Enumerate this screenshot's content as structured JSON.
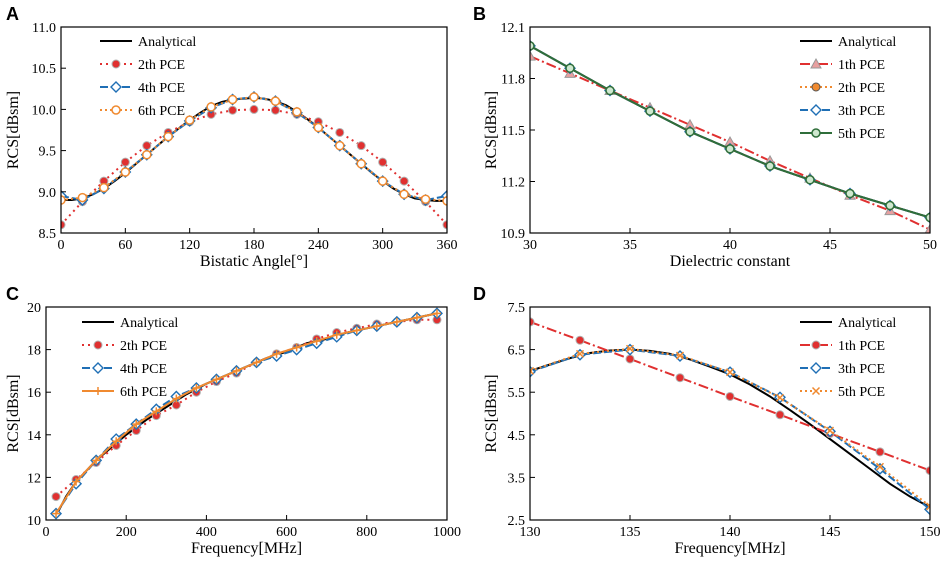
{
  "chart_data": [
    {
      "panel": "A",
      "type": "line",
      "xlabel": "Bistatic Angle[°]",
      "ylabel": "RCS[dBsm]",
      "xlim": [
        0,
        360
      ],
      "ylim": [
        8.5,
        11.0
      ],
      "xticks": [
        0,
        60,
        120,
        180,
        240,
        300,
        360
      ],
      "yticks": [
        8.5,
        9.0,
        9.5,
        10.0,
        10.5,
        11.0
      ],
      "ytick_labels": [
        "8.5",
        "9.0",
        "9.5",
        "10.0",
        "10.5",
        "11.0"
      ],
      "legend_position": "top-left",
      "series": [
        {
          "name": "Analytical",
          "color": "#000000",
          "dash": "",
          "marker": "none",
          "x": [
            0,
            10,
            20,
            30,
            40,
            50,
            60,
            70,
            80,
            90,
            100,
            110,
            120,
            130,
            140,
            150,
            160,
            170,
            180,
            190,
            200,
            210,
            220,
            230,
            240,
            250,
            260,
            270,
            280,
            290,
            300,
            310,
            320,
            330,
            340,
            350,
            360
          ],
          "y": [
            8.9,
            8.9,
            8.92,
            8.97,
            9.04,
            9.13,
            9.23,
            9.34,
            9.45,
            9.56,
            9.67,
            9.77,
            9.87,
            9.96,
            10.04,
            10.09,
            10.12,
            10.13,
            10.14,
            10.13,
            10.1,
            10.05,
            9.97,
            9.88,
            9.78,
            9.67,
            9.56,
            9.45,
            9.34,
            9.23,
            9.13,
            9.04,
            8.97,
            8.92,
            8.9,
            8.89,
            8.89
          ]
        },
        {
          "name": "2th PCE",
          "color": "#e03030",
          "dash": "2,4",
          "marker": "circle",
          "x": [
            0,
            20,
            40,
            60,
            80,
            100,
            120,
            140,
            160,
            180,
            200,
            220,
            240,
            260,
            280,
            300,
            320,
            340,
            360
          ],
          "y": [
            8.6,
            8.88,
            9.13,
            9.36,
            9.56,
            9.72,
            9.85,
            9.94,
            9.99,
            10.0,
            9.99,
            9.94,
            9.85,
            9.72,
            9.56,
            9.36,
            9.13,
            8.88,
            8.6
          ]
        },
        {
          "name": "4th PCE",
          "color": "#1f6fb5",
          "dash": "8,3",
          "marker": "diamond",
          "x": [
            0,
            20,
            40,
            60,
            80,
            100,
            120,
            140,
            160,
            180,
            200,
            220,
            240,
            260,
            280,
            300,
            320,
            340,
            360
          ],
          "y": [
            8.95,
            8.9,
            9.04,
            9.24,
            9.45,
            9.67,
            9.86,
            10.02,
            10.12,
            10.15,
            10.1,
            9.96,
            9.78,
            9.56,
            9.34,
            9.13,
            8.97,
            8.9,
            8.95
          ]
        },
        {
          "name": "6th PCE",
          "color": "#f08a30",
          "dash": "2,3",
          "marker": "circle-open",
          "x": [
            0,
            20,
            40,
            60,
            80,
            100,
            120,
            140,
            160,
            180,
            200,
            220,
            240,
            260,
            280,
            300,
            320,
            340,
            360
          ],
          "y": [
            8.9,
            8.93,
            9.05,
            9.24,
            9.45,
            9.67,
            9.87,
            10.03,
            10.12,
            10.15,
            10.1,
            9.97,
            9.78,
            9.56,
            9.34,
            9.13,
            8.97,
            8.91,
            8.89
          ]
        }
      ]
    },
    {
      "panel": "B",
      "type": "line",
      "xlabel": "Dielectric constant",
      "ylabel": "RCS[dBsm]",
      "xlim": [
        30,
        50
      ],
      "ylim": [
        10.9,
        12.1
      ],
      "xticks": [
        30,
        35,
        40,
        45,
        50
      ],
      "yticks": [
        10.9,
        11.2,
        11.5,
        11.8,
        12.1
      ],
      "ytick_labels": [
        "10.9",
        "11.2",
        "11.5",
        "11.8",
        "12.1"
      ],
      "legend_position": "top-right",
      "series": [
        {
          "name": "Analytical",
          "color": "#000000",
          "dash": "",
          "marker": "none",
          "x": [
            30,
            32,
            34,
            36,
            38,
            40,
            42,
            44,
            46,
            48,
            50
          ],
          "y": [
            11.99,
            11.86,
            11.73,
            11.61,
            11.49,
            11.39,
            11.29,
            11.21,
            11.13,
            11.06,
            10.99
          ]
        },
        {
          "name": "1th PCE",
          "color": "#e03030",
          "dash": "10,3,2,3",
          "marker": "triangle",
          "x": [
            30,
            32,
            34,
            36,
            38,
            40,
            42,
            44,
            46,
            48,
            50
          ],
          "y": [
            11.93,
            11.83,
            11.73,
            11.63,
            11.53,
            11.43,
            11.32,
            11.22,
            11.12,
            11.03,
            10.92
          ]
        },
        {
          "name": "2th PCE",
          "color": "#f08a30",
          "dash": "2,3",
          "marker": "circle-filled-orange",
          "x": [
            30,
            32,
            34,
            36,
            38,
            40,
            42,
            44,
            46,
            48,
            50
          ],
          "y": [
            11.99,
            11.86,
            11.73,
            11.61,
            11.49,
            11.39,
            11.29,
            11.21,
            11.13,
            11.06,
            10.99
          ]
        },
        {
          "name": "3th PCE",
          "color": "#1f6fb5",
          "dash": "8,3",
          "marker": "diamond",
          "x": [
            30,
            32,
            34,
            36,
            38,
            40,
            42,
            44,
            46,
            48,
            50
          ],
          "y": [
            11.99,
            11.86,
            11.73,
            11.61,
            11.49,
            11.39,
            11.29,
            11.21,
            11.13,
            11.06,
            10.99
          ]
        },
        {
          "name": "5th PCE",
          "color": "#2f6e3a",
          "dash": "",
          "marker": "circle-half-green",
          "x": [
            30,
            32,
            34,
            36,
            38,
            40,
            42,
            44,
            46,
            48,
            50
          ],
          "y": [
            11.99,
            11.86,
            11.73,
            11.61,
            11.49,
            11.39,
            11.29,
            11.21,
            11.13,
            11.06,
            10.99
          ]
        }
      ]
    },
    {
      "panel": "C",
      "type": "line",
      "xlabel": "Frequency[MHz]",
      "ylabel": "RCS[dBsm]",
      "xlim": [
        0,
        1000
      ],
      "ylim": [
        10,
        20
      ],
      "xticks": [
        0,
        200,
        400,
        600,
        800,
        1000
      ],
      "yticks": [
        10,
        12,
        14,
        16,
        18,
        20
      ],
      "ytick_labels": [
        "10",
        "12",
        "14",
        "16",
        "18",
        "20"
      ],
      "legend_position": "top-left",
      "series": [
        {
          "name": "Analytical",
          "color": "#000000",
          "dash": "",
          "marker": "none",
          "x": [
            25,
            50,
            75,
            100,
            125,
            150,
            175,
            200,
            250,
            300,
            350,
            400,
            450,
            500,
            550,
            600,
            650,
            700,
            750,
            800,
            850,
            900,
            950,
            975
          ],
          "y": [
            10.2,
            11.1,
            11.8,
            12.3,
            12.8,
            13.2,
            13.6,
            14.0,
            14.7,
            15.3,
            15.9,
            16.4,
            16.8,
            17.2,
            17.6,
            17.9,
            18.3,
            18.5,
            18.8,
            19.0,
            19.2,
            19.4,
            19.6,
            19.7
          ]
        },
        {
          "name": "2th PCE",
          "color": "#e03030",
          "dash": "2,4",
          "marker": "circle",
          "x": [
            25,
            75,
            125,
            175,
            225,
            275,
            325,
            375,
            425,
            475,
            525,
            575,
            625,
            675,
            725,
            775,
            825,
            875,
            925,
            975
          ],
          "y": [
            11.1,
            11.9,
            12.7,
            13.5,
            14.2,
            14.9,
            15.4,
            16.0,
            16.5,
            16.9,
            17.4,
            17.8,
            18.1,
            18.5,
            18.8,
            19.0,
            19.2,
            19.3,
            19.4,
            19.4
          ]
        },
        {
          "name": "4th PCE",
          "color": "#1f6fb5",
          "dash": "8,3",
          "marker": "diamond",
          "x": [
            25,
            75,
            125,
            175,
            225,
            275,
            325,
            375,
            425,
            475,
            525,
            575,
            625,
            675,
            725,
            775,
            825,
            875,
            925,
            975
          ],
          "y": [
            10.3,
            11.7,
            12.8,
            13.8,
            14.5,
            15.2,
            15.8,
            16.2,
            16.6,
            17.0,
            17.4,
            17.7,
            18.0,
            18.3,
            18.6,
            18.9,
            19.1,
            19.3,
            19.5,
            19.7
          ]
        },
        {
          "name": "6th PCE",
          "color": "#f08a30",
          "dash": "",
          "marker": "plus",
          "x": [
            25,
            75,
            125,
            175,
            225,
            275,
            325,
            375,
            425,
            475,
            525,
            575,
            625,
            675,
            725,
            775,
            825,
            875,
            925,
            975
          ],
          "y": [
            10.3,
            11.8,
            12.8,
            13.7,
            14.5,
            15.1,
            15.7,
            16.2,
            16.6,
            17.0,
            17.4,
            17.8,
            18.1,
            18.4,
            18.7,
            18.9,
            19.1,
            19.3,
            19.5,
            19.7
          ]
        }
      ]
    },
    {
      "panel": "D",
      "type": "line",
      "xlabel": "Frequency[MHz]",
      "ylabel": "RCS[dBsm]",
      "xlim": [
        130,
        150
      ],
      "ylim": [
        2.5,
        7.5
      ],
      "xticks": [
        130,
        135,
        140,
        145,
        150
      ],
      "yticks": [
        2.5,
        3.5,
        4.5,
        5.5,
        6.5,
        7.5
      ],
      "ytick_labels": [
        "2.5",
        "3.5",
        "4.5",
        "5.5",
        "6.5",
        "7.5"
      ],
      "legend_position": "top-right",
      "series": [
        {
          "name": "Analytical",
          "color": "#000000",
          "dash": "",
          "marker": "none",
          "x": [
            130,
            131,
            132,
            133,
            134,
            135,
            136,
            137,
            138,
            139,
            140,
            141,
            142,
            143,
            144,
            145,
            146,
            147,
            148,
            149,
            150
          ],
          "y": [
            6.0,
            6.15,
            6.3,
            6.42,
            6.48,
            6.5,
            6.47,
            6.4,
            6.27,
            6.1,
            5.92,
            5.68,
            5.4,
            5.08,
            4.75,
            4.4,
            4.05,
            3.7,
            3.35,
            3.05,
            2.8
          ]
        },
        {
          "name": "1th PCE",
          "color": "#e03030",
          "dash": "10,3,2,3",
          "marker": "circle",
          "x": [
            130,
            132.5,
            135,
            137.5,
            140,
            142.5,
            145,
            147.5,
            150
          ],
          "y": [
            7.15,
            6.72,
            6.28,
            5.84,
            5.4,
            4.97,
            4.53,
            4.1,
            3.66
          ]
        },
        {
          "name": "3th PCE",
          "color": "#1f6fb5",
          "dash": "8,3",
          "marker": "diamond",
          "x": [
            130,
            132.5,
            135,
            137.5,
            140,
            142.5,
            145,
            147.5,
            150
          ],
          "y": [
            5.98,
            6.38,
            6.5,
            6.35,
            5.97,
            5.38,
            4.58,
            3.7,
            2.75
          ]
        },
        {
          "name": "5th PCE",
          "color": "#f08a30",
          "dash": "2,3",
          "marker": "x",
          "x": [
            130,
            132.5,
            135,
            137.5,
            140,
            142.5,
            145,
            147.5,
            150
          ],
          "y": [
            6.0,
            6.4,
            6.52,
            6.36,
            5.97,
            5.37,
            4.6,
            3.75,
            2.82
          ]
        }
      ]
    }
  ]
}
